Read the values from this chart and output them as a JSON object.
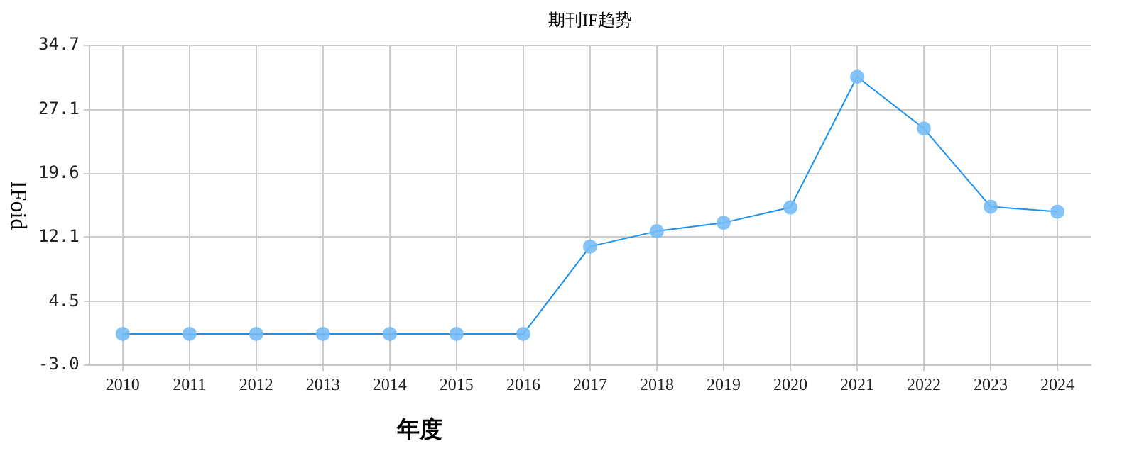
{
  "chart_data": {
    "type": "line",
    "title": "期刊IF趋势",
    "xlabel": "年度",
    "ylabel": "IFoid",
    "categories": [
      "2010",
      "2011",
      "2012",
      "2013",
      "2014",
      "2015",
      "2016",
      "2017",
      "2018",
      "2019",
      "2020",
      "2021",
      "2022",
      "2023",
      "2024"
    ],
    "series": [
      {
        "color": "#1a90f0",
        "values": [
          0.7,
          0.7,
          0.7,
          0.7,
          0.7,
          0.7,
          0.7,
          11.0,
          12.8,
          13.8,
          15.6,
          31.0,
          24.9,
          15.7,
          15.1
        ]
      }
    ],
    "ylim": [
      -3.0,
      34.7
    ],
    "yticks": [
      {
        "value": -3.0,
        "label": "-3.0"
      },
      {
        "value": 4.5,
        "label": "4.5"
      },
      {
        "value": 12.1,
        "label": "12.1"
      },
      {
        "value": 19.6,
        "label": "19.6"
      },
      {
        "value": 27.1,
        "label": "27.1"
      },
      {
        "value": 34.7,
        "label": "34.7"
      }
    ],
    "grid": true,
    "marker": "circle",
    "line_style": "solid",
    "legend": false
  }
}
